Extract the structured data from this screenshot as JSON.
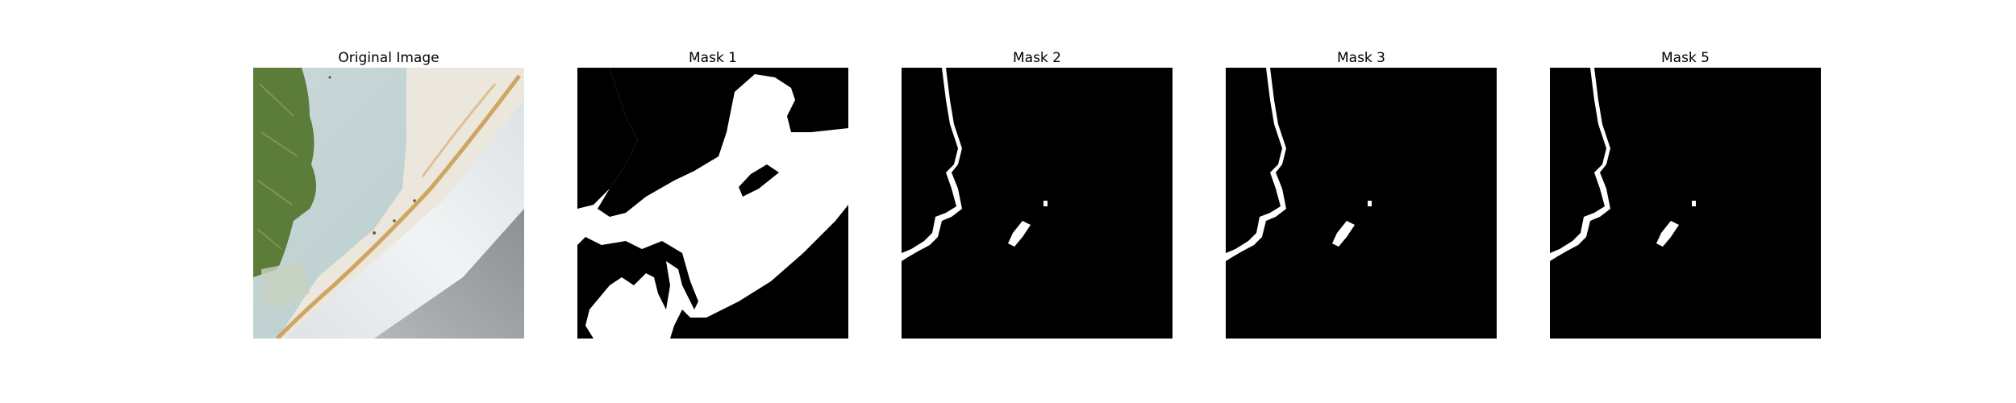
{
  "panels": [
    {
      "title": "Original Image"
    },
    {
      "title": "Mask 1"
    },
    {
      "title": "Mask 2"
    },
    {
      "title": "Mask 3"
    },
    {
      "title": "Mask 5"
    }
  ],
  "colors": {
    "mask_foreground": "#ffffff",
    "mask_background": "#000000",
    "leaf_green": "#5f7f3d",
    "pale_blue_surface": "#c6d6d5",
    "white_tube": "#e8ecee",
    "rust_stain": "#c8923a",
    "gray_shadow": "#9a9c9f"
  }
}
